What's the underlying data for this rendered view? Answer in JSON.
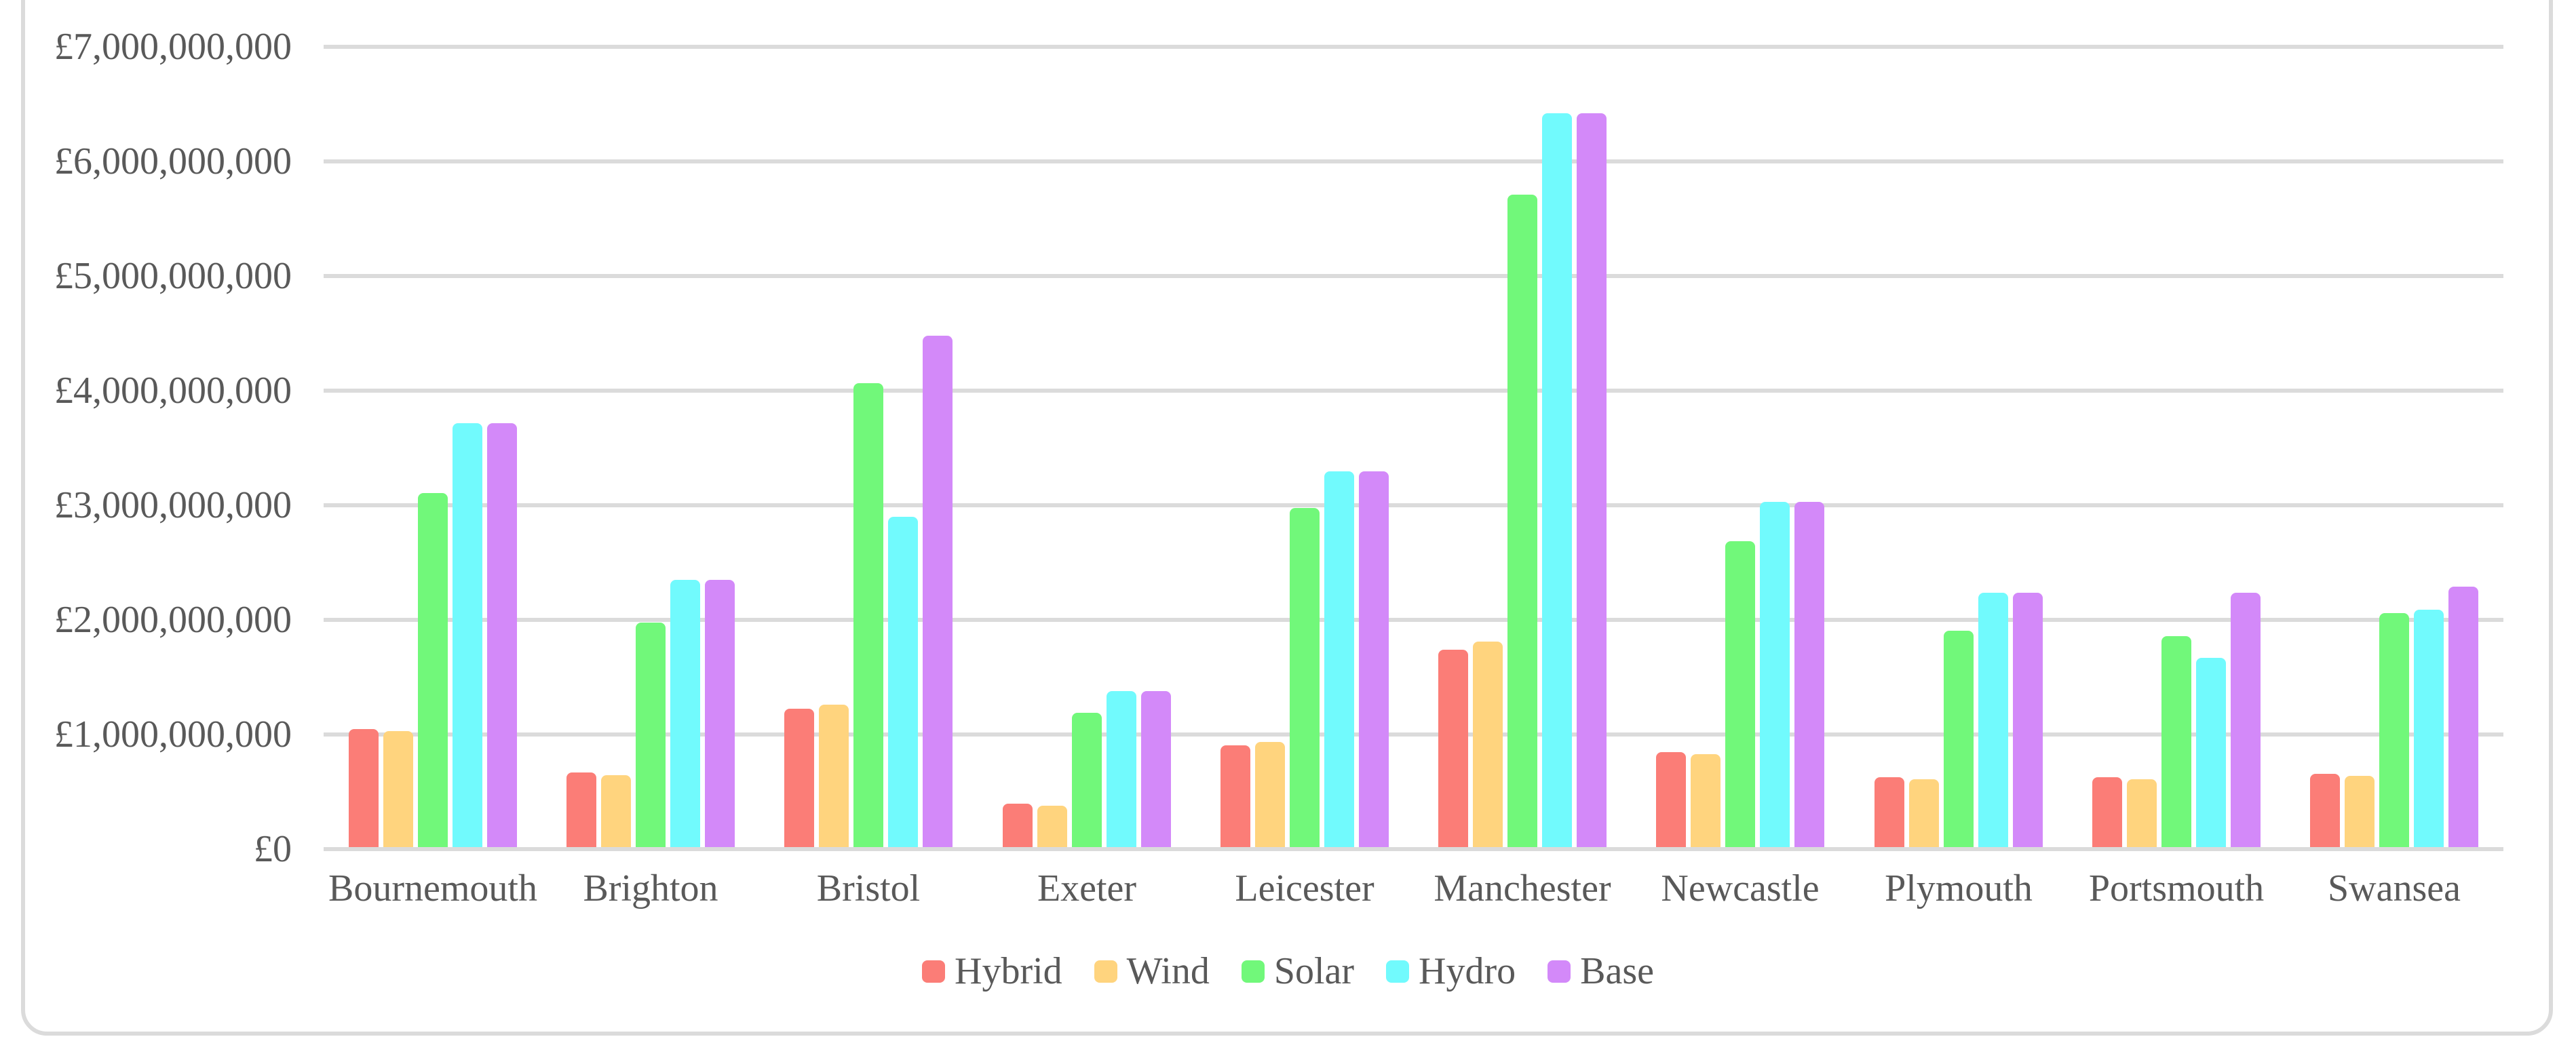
{
  "figure": {
    "background": "#FFFFFF",
    "border_color": "#DBDBDB",
    "gridline_color": "#DBDBDB",
    "text_color": "#595959"
  },
  "chart_data": {
    "type": "bar",
    "title": "",
    "xlabel": "",
    "ylabel": "",
    "grid": true,
    "legend_position": "bottom",
    "ylim": [
      0,
      7000000000
    ],
    "categories": [
      "Bournemouth",
      "Brighton",
      "Bristol",
      "Exeter",
      "Leicester",
      "Manchester",
      "Newcastle",
      "Plymouth",
      "Portsmouth",
      "Swansea"
    ],
    "series": [
      {
        "name": "Hybrid",
        "color": "#FB7D77",
        "values": [
          1030000000,
          650000000,
          1210000000,
          380000000,
          890000000,
          1720000000,
          830000000,
          610000000,
          610000000,
          640000000
        ]
      },
      {
        "name": "Wind",
        "color": "#FFD47E",
        "values": [
          1010000000,
          630000000,
          1240000000,
          360000000,
          920000000,
          1790000000,
          810000000,
          590000000,
          590000000,
          620000000
        ]
      },
      {
        "name": "Solar",
        "color": "#71F87A",
        "values": [
          3090000000,
          1960000000,
          4050000000,
          1170000000,
          2960000000,
          5690000000,
          2670000000,
          1890000000,
          1840000000,
          2040000000
        ]
      },
      {
        "name": "Hydro",
        "color": "#71FAFD",
        "values": [
          3700000000,
          2330000000,
          2880000000,
          1360000000,
          3280000000,
          6400000000,
          3010000000,
          2220000000,
          1650000000,
          2070000000
        ]
      },
      {
        "name": "Base",
        "color": "#D389F9",
        "values": [
          3700000000,
          2330000000,
          4460000000,
          1360000000,
          3280000000,
          6400000000,
          3010000000,
          2220000000,
          2220000000,
          2270000000
        ]
      }
    ],
    "y_ticks": [
      {
        "value": 0,
        "label": "£0"
      },
      {
        "value": 1000000000,
        "label": "£1,000,000,000"
      },
      {
        "value": 2000000000,
        "label": "£2,000,000,000"
      },
      {
        "value": 3000000000,
        "label": "£3,000,000,000"
      },
      {
        "value": 4000000000,
        "label": "£4,000,000,000"
      },
      {
        "value": 5000000000,
        "label": "£5,000,000,000"
      },
      {
        "value": 6000000000,
        "label": "£6,000,000,000"
      },
      {
        "value": 7000000000,
        "label": "£7,000,000,000"
      }
    ]
  }
}
